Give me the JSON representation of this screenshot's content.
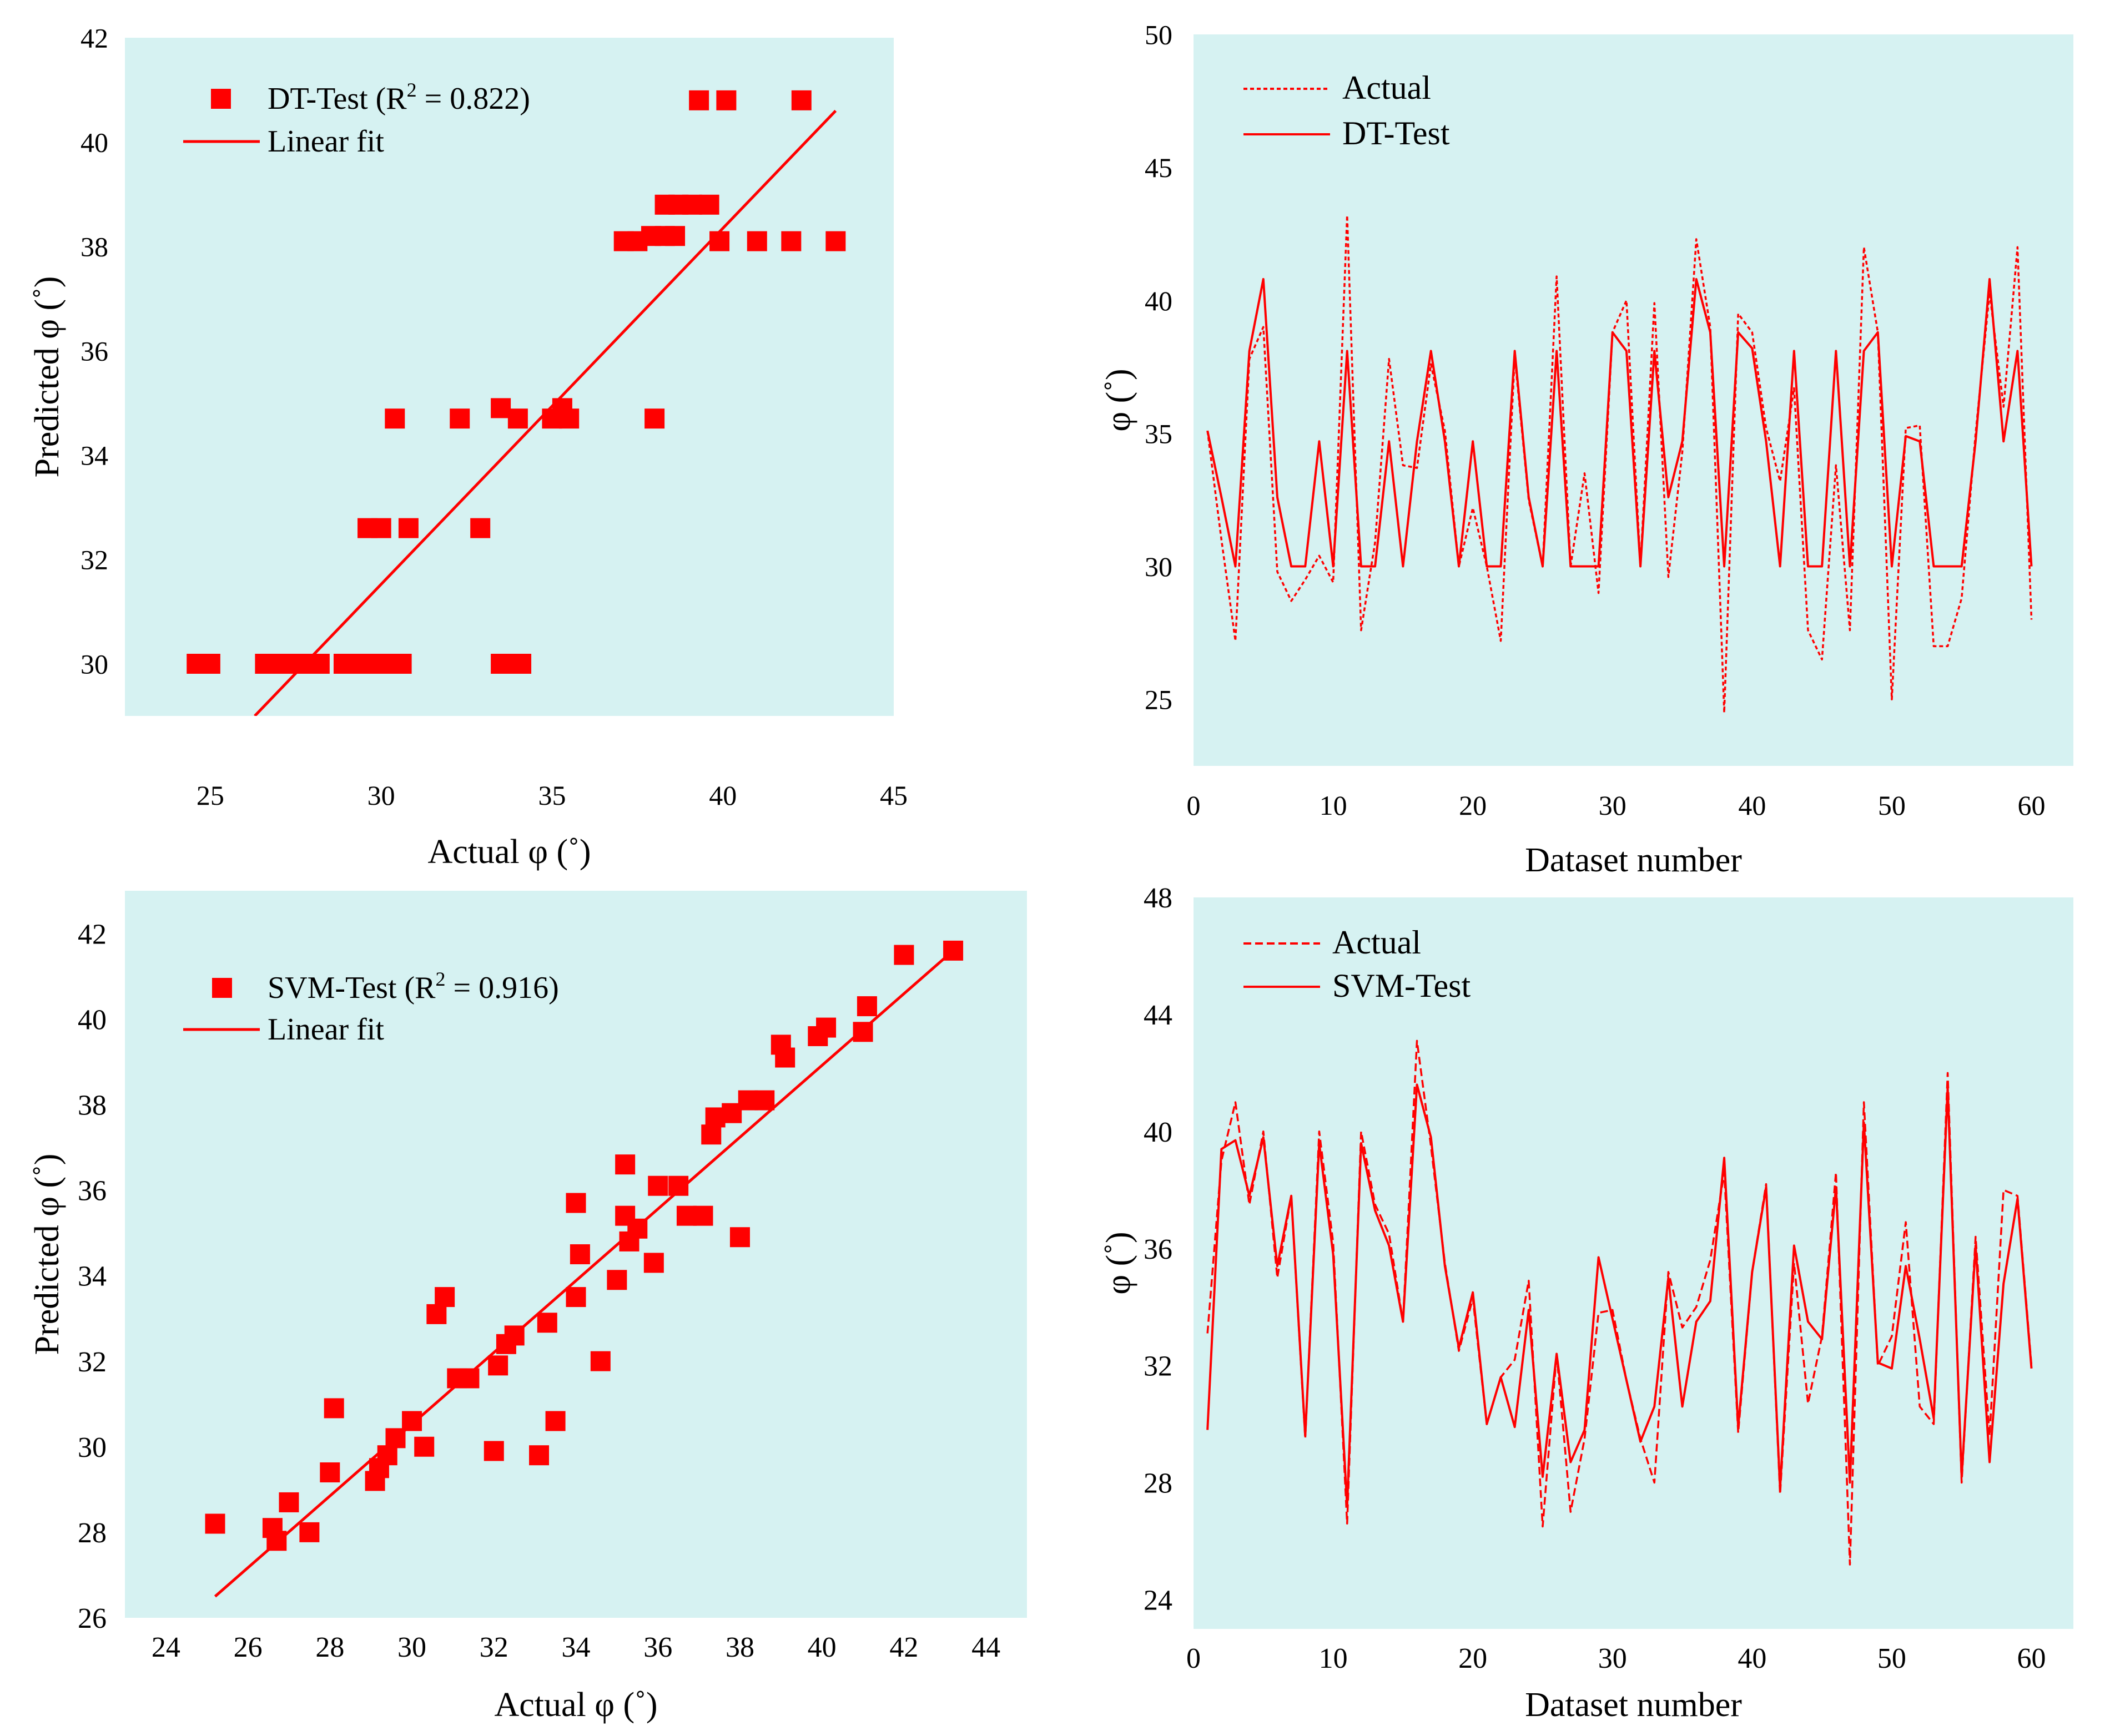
{
  "colors": {
    "marker": "#ff0000",
    "line": "#ff0000",
    "plot_bg": "#d6f2f2",
    "axis_text": "#000000"
  },
  "chart_data": [
    {
      "id": "dt-scatter",
      "type": "scatter",
      "title": "",
      "xlabel": "Actual φ (˚)",
      "ylabel": "Predicted φ (˚)",
      "xlim": [
        22.5,
        45
      ],
      "ylim": [
        29,
        42
      ],
      "xticks": [
        25,
        30,
        35,
        40,
        45
      ],
      "yticks": [
        30,
        32,
        34,
        36,
        38,
        40,
        42
      ],
      "legend": {
        "position": "top-left",
        "series_label": "DT-Test (R",
        "series_sup": "2",
        "series_suffix": " = 0.822)",
        "fit_label": "Linear fit"
      },
      "fit": {
        "x": [
          26.3,
          43.3
        ],
        "y": [
          29.0,
          40.6
        ]
      },
      "points": [
        [
          24.6,
          30
        ],
        [
          25.0,
          30
        ],
        [
          26.6,
          30
        ],
        [
          27.0,
          30
        ],
        [
          27.4,
          30
        ],
        [
          27.8,
          30
        ],
        [
          28.2,
          30
        ],
        [
          28.9,
          30
        ],
        [
          29.3,
          30
        ],
        [
          29.6,
          30
        ],
        [
          30.0,
          30
        ],
        [
          30.3,
          30
        ],
        [
          30.6,
          30
        ],
        [
          33.5,
          30
        ],
        [
          33.8,
          30
        ],
        [
          34.1,
          30
        ],
        [
          29.6,
          32.6
        ],
        [
          30.0,
          32.6
        ],
        [
          30.8,
          32.6
        ],
        [
          32.9,
          32.6
        ],
        [
          30.4,
          34.7
        ],
        [
          32.3,
          34.7
        ],
        [
          33.5,
          34.9
        ],
        [
          34.0,
          34.7
        ],
        [
          35.0,
          34.7
        ],
        [
          35.3,
          34.9
        ],
        [
          35.5,
          34.7
        ],
        [
          38.0,
          34.7
        ],
        [
          37.1,
          38.1
        ],
        [
          37.5,
          38.1
        ],
        [
          37.9,
          38.2
        ],
        [
          38.3,
          38.2
        ],
        [
          38.6,
          38.2
        ],
        [
          39.9,
          38.1
        ],
        [
          41.0,
          38.1
        ],
        [
          42.0,
          38.1
        ],
        [
          43.3,
          38.1
        ],
        [
          38.3,
          38.8
        ],
        [
          38.7,
          38.8
        ],
        [
          39.1,
          38.8
        ],
        [
          39.6,
          38.8
        ],
        [
          39.3,
          40.8
        ],
        [
          40.1,
          40.8
        ],
        [
          42.3,
          40.8
        ]
      ]
    },
    {
      "id": "dt-series",
      "type": "line",
      "title": "",
      "xlabel": "Dataset number",
      "ylabel": "φ (˚)",
      "xlim": [
        0,
        63
      ],
      "ylim": [
        22.5,
        50
      ],
      "xticks": [
        0,
        10,
        20,
        30,
        40,
        50,
        60
      ],
      "yticks": [
        25,
        30,
        35,
        40,
        45,
        50
      ],
      "legend": {
        "position": "top-left"
      },
      "series": [
        {
          "name": "Actual",
          "style": "dotted",
          "values": [
            35.1,
            31.0,
            27.2,
            37.8,
            39.0,
            29.8,
            28.7,
            29.5,
            30.4,
            29.4,
            43.2,
            27.6,
            30.9,
            37.8,
            33.8,
            33.7,
            37.6,
            35.1,
            30.0,
            32.2,
            30.0,
            27.2,
            37.9,
            32.5,
            30.0,
            40.9,
            30.0,
            33.5,
            29.0,
            38.8,
            40.0,
            30.0,
            39.9,
            29.6,
            34.3,
            42.3,
            39.0,
            24.5,
            39.5,
            38.8,
            35.2,
            33.2,
            36.7,
            27.6,
            26.5,
            33.8,
            27.6,
            42.0,
            38.8,
            25.0,
            35.2,
            35.3,
            27.0,
            27.0,
            28.8,
            35.0,
            40.3,
            36.0,
            42.0,
            28.0
          ]
        },
        {
          "name": "DT-Test",
          "style": "solid",
          "values": [
            35.1,
            32.6,
            30.0,
            38.1,
            40.8,
            32.6,
            30.0,
            30.0,
            34.7,
            30.0,
            38.1,
            30.0,
            30.0,
            34.7,
            30.0,
            34.7,
            38.1,
            34.7,
            30.0,
            34.7,
            30.0,
            30.0,
            38.1,
            32.6,
            30.0,
            38.1,
            30.0,
            30.0,
            30.0,
            38.8,
            38.1,
            30.0,
            38.1,
            32.6,
            34.7,
            40.8,
            38.8,
            30.0,
            38.8,
            38.2,
            34.7,
            30.0,
            38.1,
            30.0,
            30.0,
            38.1,
            30.0,
            38.1,
            38.8,
            30.0,
            34.9,
            34.7,
            30.0,
            30.0,
            30.0,
            34.7,
            40.8,
            34.7,
            38.1,
            30.0
          ]
        }
      ]
    },
    {
      "id": "svm-scatter",
      "type": "scatter",
      "title": "",
      "xlabel": "Actual φ (˚)",
      "ylabel": "Predicted φ (˚)",
      "xlim": [
        23,
        45
      ],
      "ylim": [
        26,
        43
      ],
      "xticks": [
        24,
        26,
        28,
        30,
        32,
        34,
        36,
        38,
        40,
        42,
        44
      ],
      "yticks": [
        26,
        28,
        30,
        32,
        34,
        36,
        38,
        40,
        42
      ],
      "legend": {
        "position": "top-left",
        "series_label": "SVM-Test (R",
        "series_sup": "2",
        "series_suffix": " = 0.916)",
        "fit_label": "Linear fit"
      },
      "fit": {
        "x": [
          25.2,
          43.2
        ],
        "y": [
          26.5,
          41.6
        ]
      },
      "points": [
        [
          25.2,
          28.2
        ],
        [
          26.6,
          28.1
        ],
        [
          26.7,
          27.8
        ],
        [
          27.0,
          28.7
        ],
        [
          27.5,
          28.0
        ],
        [
          28.0,
          29.4
        ],
        [
          28.1,
          30.9
        ],
        [
          29.1,
          29.2
        ],
        [
          29.2,
          29.5
        ],
        [
          29.4,
          29.8
        ],
        [
          29.6,
          30.2
        ],
        [
          30.0,
          30.6
        ],
        [
          30.3,
          30.0
        ],
        [
          30.6,
          33.1
        ],
        [
          30.8,
          33.5
        ],
        [
          31.1,
          31.6
        ],
        [
          31.4,
          31.6
        ],
        [
          32.0,
          29.9
        ],
        [
          32.1,
          31.9
        ],
        [
          32.3,
          32.4
        ],
        [
          32.5,
          32.6
        ],
        [
          33.1,
          29.8
        ],
        [
          33.3,
          32.9
        ],
        [
          33.5,
          30.6
        ],
        [
          34.0,
          33.5
        ],
        [
          34.0,
          35.7
        ],
        [
          34.1,
          34.5
        ],
        [
          34.6,
          32.0
        ],
        [
          35.0,
          33.9
        ],
        [
          35.2,
          35.4
        ],
        [
          35.2,
          36.6
        ],
        [
          35.3,
          34.8
        ],
        [
          35.5,
          35.1
        ],
        [
          35.9,
          34.3
        ],
        [
          36.0,
          36.1
        ],
        [
          36.5,
          36.1
        ],
        [
          36.7,
          35.4
        ],
        [
          37.1,
          35.4
        ],
        [
          37.3,
          37.3
        ],
        [
          37.4,
          37.7
        ],
        [
          37.8,
          37.8
        ],
        [
          38.0,
          34.9
        ],
        [
          38.2,
          38.1
        ],
        [
          38.6,
          38.1
        ],
        [
          39.0,
          39.4
        ],
        [
          39.1,
          39.1
        ],
        [
          39.9,
          39.6
        ],
        [
          40.1,
          39.8
        ],
        [
          41.0,
          39.7
        ],
        [
          41.1,
          40.3
        ],
        [
          42.0,
          41.5
        ],
        [
          43.2,
          41.6
        ]
      ]
    },
    {
      "id": "svm-series",
      "type": "line",
      "title": "",
      "xlabel": "Dataset number",
      "ylabel": "φ (˚)",
      "xlim": [
        0,
        63
      ],
      "ylim": [
        23,
        48
      ],
      "xticks": [
        0,
        10,
        20,
        30,
        40,
        50,
        60
      ],
      "yticks": [
        24,
        28,
        32,
        36,
        40,
        44,
        48
      ],
      "legend": {
        "position": "top-left"
      },
      "series": [
        {
          "name": "Actual",
          "style": "dashed",
          "values": [
            33.1,
            39.0,
            41.0,
            37.5,
            40.0,
            35.0,
            37.8,
            29.5,
            40.0,
            36.2,
            26.6,
            40.0,
            37.5,
            36.5,
            33.5,
            43.1,
            39.5,
            35.5,
            32.5,
            34.3,
            30.0,
            31.6,
            32.2,
            34.9,
            26.5,
            32.4,
            27.0,
            29.5,
            33.8,
            33.9,
            31.5,
            29.5,
            28.0,
            35.2,
            33.3,
            34.0,
            35.6,
            38.6,
            29.7,
            35.2,
            38.2,
            27.6,
            35.5,
            30.7,
            33.0,
            38.6,
            25.2,
            41.0,
            32.0,
            33.0,
            36.9,
            30.6,
            30.0,
            42.0,
            28.0,
            36.4,
            29.6,
            38.0,
            37.8,
            32.0
          ]
        },
        {
          "name": "SVM-Test",
          "style": "solid",
          "values": [
            29.8,
            39.4,
            39.7,
            37.8,
            39.8,
            35.4,
            37.8,
            29.6,
            39.6,
            35.8,
            27.2,
            39.6,
            37.3,
            36.1,
            33.5,
            41.6,
            39.8,
            35.4,
            32.6,
            34.5,
            30.0,
            31.6,
            29.9,
            33.9,
            28.2,
            32.4,
            28.7,
            29.8,
            35.7,
            33.6,
            31.5,
            29.4,
            30.6,
            35.0,
            30.6,
            33.5,
            34.2,
            39.1,
            29.9,
            35.2,
            38.1,
            27.8,
            36.1,
            33.5,
            32.9,
            38.1,
            28.0,
            40.3,
            32.1,
            31.9,
            35.4,
            32.9,
            30.2,
            41.5,
            28.2,
            36.1,
            28.7,
            34.8,
            37.7,
            31.9
          ]
        }
      ]
    }
  ]
}
